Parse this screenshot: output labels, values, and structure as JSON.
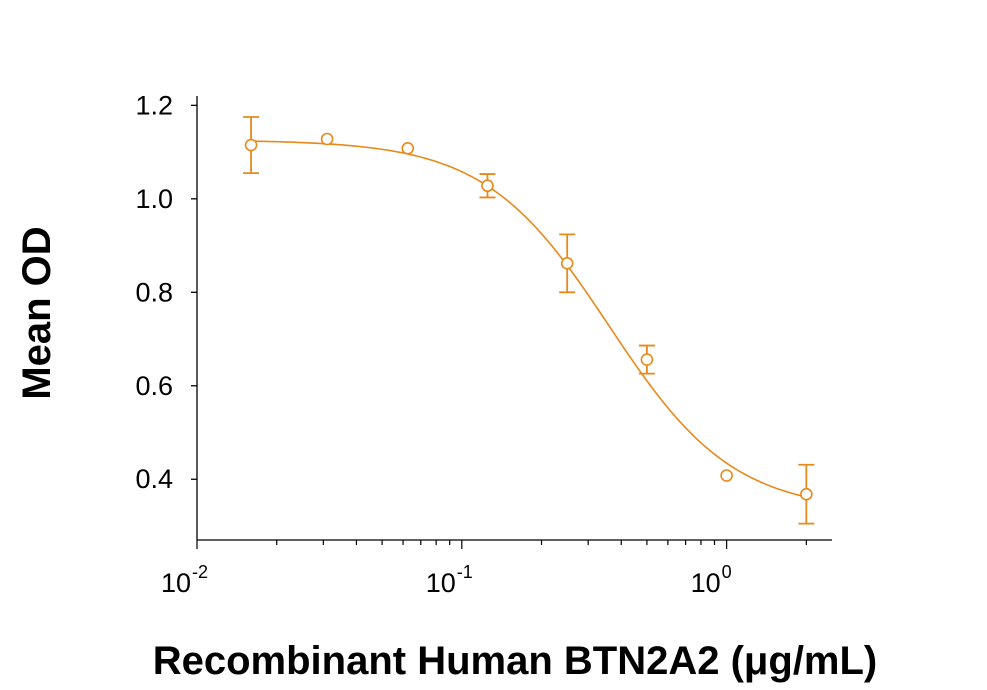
{
  "chart_data": {
    "type": "scatter",
    "title": "",
    "xlabel": "Recombinant Human BTN2A2 (μg/mL)",
    "ylabel": "Mean OD",
    "xscale": "log",
    "xlim": [
      0.01,
      2.5
    ],
    "ylim": [
      0.27,
      1.22
    ],
    "x_tick_labels": [
      {
        "base": "10",
        "exp": "-2",
        "value": 0.01
      },
      {
        "base": "10",
        "exp": "-1",
        "value": 0.1
      },
      {
        "base": "10",
        "exp": "0",
        "value": 1
      }
    ],
    "y_tick_labels": [
      "0.4",
      "0.6",
      "0.8",
      "1.0",
      "1.2"
    ],
    "y_tick_values": [
      0.4,
      0.6,
      0.8,
      1.0,
      1.2
    ],
    "grid": false,
    "color": "#e8891b",
    "points": [
      {
        "x": 0.016,
        "y": 1.115,
        "err": 0.06
      },
      {
        "x": 0.031,
        "y": 1.128,
        "err": 0
      },
      {
        "x": 0.0625,
        "y": 1.108,
        "err": 0
      },
      {
        "x": 0.125,
        "y": 1.028,
        "err": 0.025
      },
      {
        "x": 0.25,
        "y": 0.862,
        "err": 0.062
      },
      {
        "x": 0.5,
        "y": 0.656,
        "err": 0.03
      },
      {
        "x": 1.0,
        "y": 0.408,
        "err": 0
      },
      {
        "x": 2.0,
        "y": 0.368,
        "err": 0.063
      }
    ],
    "fit_curve": {
      "top": 1.126,
      "bottom": 0.33,
      "ec50": 0.36,
      "hill": 1.85
    }
  }
}
